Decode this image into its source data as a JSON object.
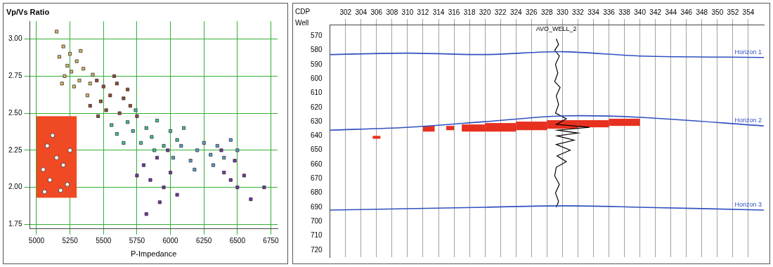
{
  "chart_data": [
    {
      "type": "scatter",
      "title": "Vp/Vs Ratio",
      "x_label": "P-Impedance",
      "xlim": [
        4950,
        6800
      ],
      "xticks": [
        5000,
        5250,
        5500,
        5750,
        6000,
        6250,
        6500,
        6750
      ],
      "ylim": [
        1.72,
        3.12
      ],
      "yticks": [
        1.75,
        {
          "value": 2,
          "label": "2.00"
        },
        2.25,
        {
          "value": 2.5,
          "label": "2.50"
        },
        2.75,
        {
          "value": 3,
          "label": "3.00"
        }
      ],
      "grid": true,
      "selection_box": {
        "color": "#f04a25",
        "x": [
          5000,
          5300
        ],
        "y": [
          1.93,
          2.48
        ]
      },
      "series": [
        {
          "color": "#d8b860",
          "marker": "square",
          "values": [
            [
              5150,
              3.05
            ],
            [
              5200,
              2.95
            ],
            [
              5170,
              2.88
            ],
            [
              5230,
              2.82
            ],
            [
              5260,
              2.78
            ],
            [
              5300,
              2.85
            ],
            [
              5320,
              2.72
            ],
            [
              5210,
              2.75
            ],
            [
              5280,
              2.68
            ],
            [
              5350,
              2.8
            ],
            [
              5400,
              2.7
            ],
            [
              5380,
              2.62
            ],
            [
              5250,
              2.9
            ],
            [
              5330,
              2.92
            ],
            [
              5420,
              2.76
            ],
            [
              5190,
              2.7
            ]
          ]
        },
        {
          "color": "#9a4a30",
          "marker": "square",
          "values": [
            [
              5450,
              2.72
            ],
            [
              5500,
              2.68
            ],
            [
              5550,
              2.62
            ],
            [
              5600,
              2.7
            ],
            [
              5480,
              2.58
            ],
            [
              5650,
              2.6
            ],
            [
              5700,
              2.55
            ],
            [
              5520,
              2.52
            ],
            [
              5620,
              2.5
            ],
            [
              5750,
              2.48
            ],
            [
              5580,
              2.75
            ],
            [
              5680,
              2.66
            ],
            [
              5400,
              2.55
            ],
            [
              5460,
              2.48
            ]
          ]
        },
        {
          "color": "#40c0a0",
          "marker": "square",
          "values": [
            [
              5560,
              2.42
            ],
            [
              5600,
              2.36
            ],
            [
              5680,
              2.44
            ],
            [
              5720,
              2.38
            ],
            [
              5780,
              2.3
            ],
            [
              5820,
              2.4
            ],
            [
              5860,
              2.34
            ],
            [
              5900,
              2.45
            ],
            [
              5950,
              2.28
            ],
            [
              6000,
              2.38
            ],
            [
              5650,
              2.3
            ],
            [
              5740,
              2.52
            ],
            [
              6050,
              2.32
            ],
            [
              5880,
              2.25
            ],
            [
              6100,
              2.4
            ]
          ]
        },
        {
          "color": "#5a9fd0",
          "marker": "square",
          "values": [
            [
              6020,
              2.2
            ],
            [
              6080,
              2.28
            ],
            [
              6150,
              2.18
            ],
            [
              6200,
              2.25
            ],
            [
              6250,
              2.3
            ],
            [
              6300,
              2.22
            ],
            [
              6350,
              2.28
            ],
            [
              6400,
              2.2
            ],
            [
              6450,
              2.32
            ],
            [
              6320,
              2.15
            ],
            [
              6180,
              2.12
            ],
            [
              6500,
              2.25
            ]
          ]
        },
        {
          "color": "#7a30a8",
          "marker": "square",
          "values": [
            [
              5800,
              2.15
            ],
            [
              5850,
              2.05
            ],
            [
              5900,
              2.2
            ],
            [
              5950,
              2.0
            ],
            [
              6000,
              2.1
            ],
            [
              6050,
              1.95
            ],
            [
              5920,
              1.9
            ],
            [
              5980,
              2.25
            ],
            [
              5750,
              2.08
            ],
            [
              6400,
              2.1
            ],
            [
              6450,
              2.05
            ],
            [
              6500,
              2.0
            ],
            [
              6550,
              2.08
            ],
            [
              6600,
              1.92
            ],
            [
              6480,
              2.18
            ],
            [
              6380,
              2.25
            ],
            [
              5820,
              1.82
            ],
            [
              6700,
              2.0
            ]
          ]
        },
        {
          "color": "#f4f4f4",
          "marker": "circle",
          "values": [
            [
              5050,
              2.12
            ],
            [
              5100,
              2.05
            ],
            [
              5150,
              2.2
            ],
            [
              5200,
              2.15
            ],
            [
              5230,
              2.02
            ],
            [
              5080,
              2.28
            ],
            [
              5180,
              1.98
            ],
            [
              5250,
              2.25
            ],
            [
              5120,
              2.35
            ],
            [
              5060,
              1.97
            ]
          ]
        }
      ]
    },
    {
      "type": "seismic_section",
      "x_label": "CDP",
      "row_label": "Well",
      "xlim": [
        300,
        356
      ],
      "xticks": [
        302,
        304,
        306,
        308,
        310,
        312,
        314,
        316,
        318,
        320,
        322,
        324,
        326,
        328,
        330,
        332,
        334,
        336,
        338,
        340,
        342,
        344,
        346,
        348,
        350,
        352,
        354
      ],
      "ylim": [
        562,
        725
      ],
      "yticks": [
        570,
        580,
        590,
        600,
        610,
        620,
        630,
        640,
        650,
        660,
        670,
        680,
        690,
        700,
        710,
        720
      ],
      "grid": "x",
      "anomalies": {
        "color": "#e83020",
        "boxes": [
          {
            "x": [
              305.5,
              306.5
            ],
            "y": [
              640,
              642
            ]
          },
          {
            "x": [
              312,
              313.5
            ],
            "y": [
              633,
              637
            ]
          },
          {
            "x": [
              315,
              316
            ],
            "y": [
              633,
              636
            ]
          },
          {
            "x": [
              317,
              320
            ],
            "y": [
              632,
              637
            ]
          },
          {
            "x": [
              320,
              324
            ],
            "y": [
              631,
              637
            ]
          },
          {
            "x": [
              324,
              328
            ],
            "y": [
              630,
              636
            ]
          },
          {
            "x": [
              328,
              332
            ],
            "y": [
              629,
              635
            ]
          },
          {
            "x": [
              332,
              336
            ],
            "y": [
              629,
              634
            ]
          },
          {
            "x": [
              336,
              340
            ],
            "y": [
              628,
              633
            ]
          }
        ]
      },
      "series": [
        {
          "name": "Horizon 1",
          "type": "horizon",
          "color": "#3050c0",
          "values": [
            [
              300,
              583
            ],
            [
              310,
              582
            ],
            [
              320,
              583
            ],
            [
              330,
              581
            ],
            [
              340,
              584
            ],
            [
              356,
              585
            ]
          ]
        },
        {
          "name": "Horizon 2",
          "type": "horizon",
          "color": "#3050c0",
          "values": [
            [
              300,
              636
            ],
            [
              310,
              634
            ],
            [
              320,
              630
            ],
            [
              330,
              626
            ],
            [
              340,
              627
            ],
            [
              356,
              633
            ]
          ]
        },
        {
          "name": "Horizon 3",
          "type": "horizon",
          "color": "#3050c0",
          "values": [
            [
              300,
              692
            ],
            [
              310,
              691
            ],
            [
              320,
              690
            ],
            [
              330,
              689
            ],
            [
              340,
              690
            ],
            [
              356,
              692
            ]
          ]
        },
        {
          "name": "AVO_WELL_2",
          "type": "log",
          "color": "#000000",
          "values": [
            [
              329.2,
              572
            ],
            [
              329.5,
              576
            ],
            [
              329.0,
              580
            ],
            [
              329.6,
              584
            ],
            [
              329.1,
              590
            ],
            [
              329.4,
              596
            ],
            [
              329.0,
              602
            ],
            [
              329.7,
              606
            ],
            [
              329.2,
              612
            ],
            [
              329.5,
              618
            ],
            [
              329.1,
              624
            ],
            [
              330.5,
              628
            ],
            [
              329.2,
              632
            ],
            [
              333.5,
              634
            ],
            [
              329.4,
              636
            ],
            [
              332.0,
              638
            ],
            [
              329.3,
              640
            ],
            [
              331.5,
              643
            ],
            [
              329.2,
              646
            ],
            [
              331.0,
              650
            ],
            [
              329.3,
              654
            ],
            [
              330.5,
              658
            ],
            [
              329.2,
              662
            ],
            [
              329.0,
              668
            ],
            [
              329.6,
              674
            ],
            [
              329.1,
              680
            ],
            [
              329.5,
              686
            ],
            [
              329.2,
              690
            ]
          ]
        }
      ]
    }
  ]
}
